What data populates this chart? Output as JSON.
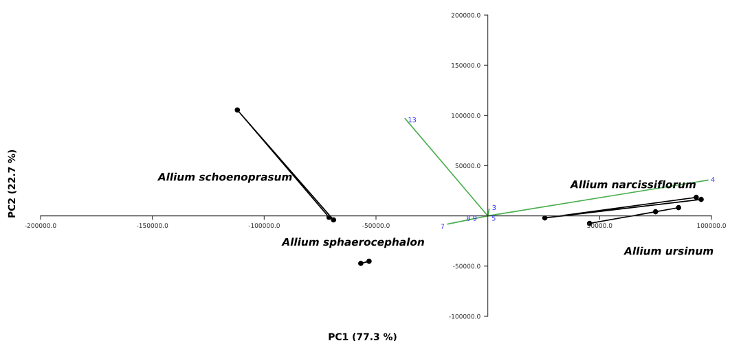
{
  "chart_data": {
    "type": "scatter",
    "xlabel": "PC1 (77.3 %)",
    "ylabel": "PC2 (22.7 %)",
    "xlim": [
      -200000,
      100000
    ],
    "ylim": [
      -100000,
      200000
    ],
    "xticks": [
      {
        "value": -200000,
        "label": "-200000.0"
      },
      {
        "value": -150000,
        "label": "-150000.0"
      },
      {
        "value": -100000,
        "label": "-100000.0"
      },
      {
        "value": -50000,
        "label": "-50000.0"
      },
      {
        "value": 50000,
        "label": "50000.0"
      },
      {
        "value": 100000,
        "label": "100000.0"
      }
    ],
    "yticks": [
      {
        "value": -100000,
        "label": "-100000.0"
      },
      {
        "value": -50000,
        "label": "-50000.0"
      },
      {
        "value": 50000,
        "label": "50000.0"
      },
      {
        "value": 100000,
        "label": "100000.0"
      },
      {
        "value": 150000,
        "label": "150000.0"
      },
      {
        "value": 200000,
        "label": "200000.0"
      }
    ],
    "grid": false,
    "marker": "circle",
    "series": [
      {
        "type": "line",
        "color": "#000000",
        "x": [
          -71000,
          -112000,
          -69000
        ],
        "values": [
          -1400,
          105500,
          -4000
        ]
      },
      {
        "type": "line",
        "color": "#000000",
        "x": [
          -56800,
          -53100
        ],
        "values": [
          -47300,
          -45200
        ]
      },
      {
        "type": "line",
        "color": "#000000",
        "x": [
          93200,
          25500,
          95400
        ],
        "values": [
          18500,
          -2000,
          16400
        ]
      },
      {
        "type": "line",
        "color": "#000000",
        "x": [
          45500,
          75000,
          85300
        ],
        "values": [
          -7500,
          4100,
          8200
        ]
      },
      {
        "type": "line",
        "marker": "none",
        "color": "#4caf50",
        "x": [
          -37000,
          0,
          -18000,
          0,
          600,
          0,
          98400
        ],
        "values": [
          97000,
          0,
          -8200,
          0,
          6800,
          0,
          35600
        ]
      }
    ],
    "annotations": [
      "Allium schoenoprasum",
      "Allium sphaerocephalon",
      "Allium narcissiflorum",
      "Allium ursinum",
      {
        "text": "13",
        "x": -37000,
        "y": 97000
      },
      {
        "text": "4",
        "x": 98400,
        "y": 35600
      },
      {
        "text": "7",
        "x": -18000,
        "y": -8200
      },
      {
        "text": "3",
        "x": 600,
        "y": 6800
      },
      {
        "text": "8 9",
        "x": -4000,
        "y": 0
      },
      {
        "text": "5",
        "x": 0,
        "y": 0
      }
    ]
  }
}
